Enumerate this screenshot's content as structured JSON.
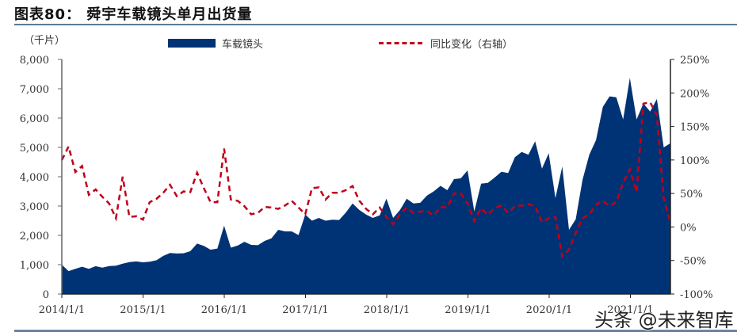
{
  "header": {
    "title": "图表80：  舜宇车载镜头单月出货量"
  },
  "colors": {
    "area": "#003375",
    "line": "#c0001a",
    "axis": "#555555"
  },
  "watermark": "头条 @未来智库",
  "chart_data": {
    "type": "area",
    "title": "舜宇车载镜头单月出货量",
    "unit_left": "（千片）",
    "legend_position": "top",
    "grid": false,
    "x_ticks": [
      "2014/1/1",
      "2015/1/1",
      "2016/1/1",
      "2017/1/1",
      "2018/1/1",
      "2019/1/1",
      "2020/1/1",
      "2021/1/1"
    ],
    "y_left": {
      "label": "千片",
      "ylim": [
        0,
        8000
      ],
      "ticks": [
        "0",
        "1,000",
        "2,000",
        "3,000",
        "4,000",
        "5,000",
        "6,000",
        "7,000",
        "8,000"
      ]
    },
    "y_right": {
      "label": "同比变化",
      "ylim": [
        -100,
        250
      ],
      "ticks": [
        "-100%",
        "-50%",
        "0%",
        "50%",
        "100%",
        "150%",
        "200%",
        "250%"
      ]
    },
    "x_start": "2014/1",
    "x_end": "2021/7",
    "series": [
      {
        "name": "车载镜头",
        "type": "area",
        "axis": "left",
        "values": [
          1000,
          780,
          860,
          930,
          860,
          950,
          900,
          955,
          965,
          1035,
          1090,
          1110,
          1080,
          1100,
          1150,
          1300,
          1400,
          1380,
          1390,
          1460,
          1720,
          1640,
          1510,
          1550,
          2330,
          1580,
          1650,
          1780,
          1675,
          1665,
          1810,
          1900,
          2190,
          2135,
          2135,
          2010,
          2710,
          2500,
          2595,
          2500,
          2535,
          2525,
          2775,
          3090,
          2865,
          2710,
          2595,
          2685,
          3250,
          2595,
          2865,
          3250,
          3090,
          3110,
          3360,
          3500,
          3690,
          3540,
          3920,
          3945,
          4215,
          2820,
          3765,
          3790,
          3970,
          4170,
          4125,
          4665,
          4845,
          4750,
          5210,
          4275,
          4800,
          3270,
          4350,
          2190,
          2550,
          3900,
          4750,
          5250,
          6380,
          6740,
          6710,
          5950,
          7370,
          5950,
          6500,
          6225,
          6650,
          5000,
          5140
        ]
      },
      {
        "name": "同比变化（右轴）",
        "type": "line",
        "style": "dashed",
        "axis": "right",
        "values": [
          100,
          120,
          82,
          91,
          48,
          56,
          45,
          35,
          13,
          75,
          15,
          16,
          11,
          37,
          42,
          51,
          63,
          46,
          53,
          52,
          81,
          58,
          37,
          37,
          117,
          41,
          39,
          31,
          19,
          21,
          30,
          29,
          27,
          32,
          39,
          29,
          19,
          58,
          59,
          41,
          51,
          51,
          55,
          61,
          39,
          27,
          19,
          29,
          15,
          4,
          19,
          29,
          21,
          23,
          24,
          17,
          30,
          29,
          50,
          50,
          35,
          9,
          28,
          18,
          28,
          32,
          21,
          31,
          32,
          34,
          31,
          7,
          13,
          15,
          -44,
          -34,
          -9,
          13,
          19,
          33,
          39,
          31,
          37,
          66,
          86,
          52,
          184,
          186,
          167,
          43,
          7
        ]
      }
    ]
  }
}
